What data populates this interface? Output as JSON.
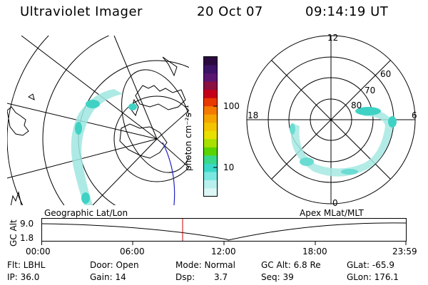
{
  "header": {
    "instrument": "Ultraviolet Imager",
    "date": "20 Oct 07",
    "time": "09:14:19 UT"
  },
  "colorbar": {
    "unit": "photon cm⁻²s⁻¹",
    "ticks": [
      "100",
      "10"
    ],
    "colors": [
      "#2b0b3f",
      "#3c1366",
      "#5a1570",
      "#8a1040",
      "#c4001a",
      "#e83a00",
      "#f47a00",
      "#f5a400",
      "#f4c400",
      "#e8e000",
      "#a8e000",
      "#5ad400",
      "#3ad88a",
      "#3ad8c8",
      "#7ae8e0",
      "#b8f0ee",
      "#dcf7f6"
    ]
  },
  "geo_panel": {
    "label": "Geographic Lat/Lon"
  },
  "polar_panel": {
    "label": "Apex MLat/MLT",
    "mlt_labels": {
      "top": "12",
      "left": "18",
      "right": "6",
      "bottom": "0"
    },
    "lat_labels": [
      "60",
      "70",
      "80"
    ]
  },
  "altitude_strip": {
    "axis_label": "GC Alt",
    "y_ticks": [
      "9.0",
      "1.8"
    ],
    "x_ticks": [
      "00:00",
      "06:00",
      "12:00",
      "18:00",
      "23:59"
    ],
    "current_time_marker": "09:14:19",
    "marker_color": "#d00000"
  },
  "status": {
    "flt": "Flt: LBHL",
    "ip": "IP: 36.0",
    "door": "Door: Open",
    "gain": "Gain: 14",
    "mode": "Mode: Normal",
    "dsp_label": "Dsp:",
    "dsp_value": "3.7",
    "gc_alt": "GC Alt: 6.8 Re",
    "seq": "Seq: 39",
    "glat": "GLat: -65.9",
    "glon": "GLon: 176.1"
  }
}
